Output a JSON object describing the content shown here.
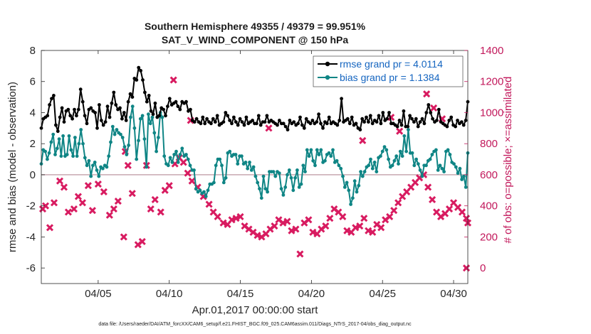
{
  "chart_data": {
    "type": "line",
    "title_line1": "Southern Hemisphere 49355 / 49379 = 99.951%",
    "title_line2": "SAT_V_WIND_COMPONENT @ 150 hPa",
    "xlabel": "Apr.01,2017 00:00:00 start",
    "ylabel_left": "rmse and bias (model - observation)",
    "ylabel_right": "# of obs: o=possible; ×=assimilated",
    "footnote": "data file: /Users/raeder/DAI/ATM_forcXX/CAM6_setup/f.e21.FHIST_BGC.f09_025.CAM6assim.011/Diags_NTrS_2017-04/obs_diag_output.nc",
    "xlim": [
      1.0,
      31.0
    ],
    "ylim_left": [
      -7,
      8
    ],
    "ylim_right": [
      -100,
      1400
    ],
    "x_ticks": [
      5,
      10,
      15,
      20,
      25,
      30
    ],
    "x_tick_labels": [
      "04/05",
      "04/10",
      "04/15",
      "04/20",
      "04/25",
      "04/30"
    ],
    "y_ticks_left": [
      -6,
      -4,
      -2,
      0,
      2,
      4,
      6,
      8
    ],
    "y_ticks_right": [
      0,
      200,
      400,
      600,
      800,
      1000,
      1200,
      1400
    ],
    "zero_line": 0,
    "colors": {
      "rmse": "#000000",
      "bias": "#0f8585",
      "obs": "#d81b60",
      "zero_line": "#c8a8b0",
      "legend_text": "#1565c0",
      "right_axis": "#c2185b"
    },
    "series": [
      {
        "name": "rmse",
        "legend": "rmse grand pr = 4.0114",
        "axis": "left",
        "marker": "circle",
        "values": [
          3.0,
          3.6,
          3.7,
          3.8,
          4.5,
          4.9,
          5.1,
          3.2,
          2.8,
          3.7,
          4.3,
          3.4,
          4.1,
          4.2,
          3.8,
          3.6,
          4.2,
          3.8,
          4.2,
          5.5,
          4.7,
          3.8,
          3.3,
          4.2,
          4.3,
          4.1,
          4.0,
          3.0,
          4.5,
          3.5,
          3.2,
          3.4,
          4.4,
          3.7,
          4.6,
          5.3,
          4.5,
          4.2,
          4.3,
          3.6,
          4.0,
          3.5,
          4.7,
          5.2,
          5.0,
          6.2,
          6.1,
          6.9,
          6.7,
          6.1,
          5.3,
          4.7,
          5.1,
          4.1,
          3.9,
          4.6,
          3.7,
          3.8,
          4.3,
          4.2,
          3.8,
          4.4,
          4.9,
          4.5,
          4.6,
          4.7,
          4.4,
          4.2,
          4.7,
          4.6,
          4.7,
          4.1,
          4.2,
          3.5,
          3.4,
          3.6,
          3.4,
          3.3,
          3.7,
          3.3,
          3.6,
          3.4,
          3.3,
          3.6,
          3.4,
          3.8,
          3.2,
          3.3,
          3.4,
          4.0,
          3.8,
          3.5,
          3.3,
          3.7,
          3.4,
          3.2,
          3.6,
          3.4,
          3.2,
          3.7,
          3.3,
          3.4,
          3.5,
          3.3,
          3.3,
          3.8,
          3.2,
          3.4,
          3.4,
          3.8,
          3.4,
          3.5,
          3.4,
          3.3,
          3.2,
          3.5,
          3.3,
          3.3,
          3.1,
          2.9,
          3.5,
          3.3,
          3.4,
          3.2,
          3.3,
          3.7,
          3.2,
          3.0,
          3.6,
          3.4,
          3.3,
          3.5,
          3.3,
          3.4,
          3.9,
          3.3,
          3.0,
          3.4,
          3.3,
          3.7,
          3.3,
          3.4,
          3.3,
          3.2,
          3.5,
          4.9,
          3.4,
          3.5,
          3.6,
          3.3,
          3.7,
          3.2,
          3.3,
          3.0,
          2.9,
          3.6,
          3.4,
          3.7,
          3.4,
          3.8,
          3.3,
          3.5,
          3.4,
          3.8,
          3.3,
          4.0,
          3.5,
          3.6,
          4.0,
          3.3,
          3.3,
          3.2,
          3.1,
          3.5,
          3.2,
          4.1,
          3.1,
          3.1,
          3.8,
          3.6,
          3.4,
          3.6,
          3.1,
          3.4,
          3.6,
          3.3,
          4.0,
          4.5,
          4.0,
          3.6,
          3.4,
          3.5,
          4.2,
          3.4,
          3.3,
          3.2,
          3.1,
          3.5,
          3.7,
          3.2,
          3.1,
          3.5,
          3.3,
          3.4,
          3.2,
          3.5,
          4.7
        ]
      },
      {
        "name": "bias",
        "legend": "bias grand pr = 1.1384",
        "axis": "left",
        "marker": "circle",
        "values": [
          0.7,
          1.6,
          1.5,
          1.0,
          1.4,
          2.1,
          2.6,
          1.3,
          1.7,
          2.3,
          1.2,
          2.5,
          1.2,
          1.3,
          2.5,
          1.6,
          1.2,
          2.4,
          1.2,
          2.0,
          2.9,
          2.0,
          1.1,
          0.6,
          0.9,
          -0.1,
          0.6,
          0.8,
          0.3,
          -0.1,
          0.5,
          0.4,
          0.6,
          0.5,
          1.2,
          2.1,
          3.1,
          2.6,
          2.9,
          2.7,
          2.6,
          2.4,
          1.8,
          1.3,
          1.9,
          3.7,
          4.4,
          3.0,
          1.0,
          2.2,
          3.6,
          3.8,
          2.3,
          0.5,
          3.9,
          3.3,
          3.7,
          2.7,
          1.5,
          2.4,
          4.0,
          3.7,
          1.2,
          0.7,
          0.6,
          1.1,
          0.8,
          1.3,
          1.5,
          0.8,
          1.3,
          1.7,
          1.2,
          1.3,
          1.0,
          0.6,
          0.3,
          0.3,
          -0.9,
          -1.1,
          -1.0,
          -1.2,
          -1.1,
          -1.4,
          -1.0,
          -0.6,
          -0.6,
          -0.5,
          0.6,
          1.0,
          1.0,
          0.6,
          -0.5,
          -0.2,
          1.4,
          1.5,
          1.2,
          1.3,
          1.3,
          0.7,
          1.2,
          1.2,
          0.7,
          0.8,
          0.4,
          0.8,
          0.3,
          0.5,
          -0.1,
          -0.5,
          -0.9,
          -1.5,
          -0.1,
          -0.9,
          -1.1,
          0.2,
          0.2,
          0.2,
          -0.1,
          0.2,
          0.1,
          -0.9,
          -1.3,
          -0.8,
          0.0,
          0.3,
          -0.2,
          -1.0,
          -0.2,
          0.3,
          -0.8,
          -0.6,
          0.6,
          0.2,
          1.6,
          1.2,
          1.6,
          0.9,
          0.6,
          1.6,
          1.3,
          1.6,
          0.8,
          0.9,
          1.3,
          1.4,
          1.2,
          1.6,
          0.8,
          0.9,
          0.6,
          0.4,
          -0.1,
          -0.8,
          -0.5,
          -1.0,
          -1.9,
          -1.5,
          -0.4,
          -1.1,
          -0.7,
          0.2,
          -0.1,
          0.2,
          0.5,
          0.6,
          1.0,
          0.4,
          0.8,
          0.2,
          1.1,
          1.2,
          1.5,
          1.8,
          1.6,
          1.0,
          0.5,
          0.6,
          0.9,
          1.2,
          0.7,
          1.5,
          1.2,
          2.5,
          1.5,
          2.9,
          1.4,
          1.4,
          0.6,
          1.0,
          0.7,
          0.3,
          -0.1,
          0.6,
          0.6,
          0.9,
          1.0,
          1.3,
          1.5,
          1.6,
          0.3,
          0.6,
          0.4,
          0.2,
          1.5,
          1.6,
          1.3,
          0.8,
          0.7,
          0.5,
          0.1,
          0.4,
          -0.3,
          -0.1,
          -0.8,
          1.4
        ]
      },
      {
        "name": "obs_assimilated",
        "axis": "right",
        "marker": "x",
        "points": [
          [
            1.1,
            380
          ],
          [
            1.3,
            400
          ],
          [
            1.6,
            260
          ],
          [
            1.9,
            420
          ],
          [
            2.3,
            560
          ],
          [
            2.6,
            520
          ],
          [
            2.9,
            360
          ],
          [
            3.3,
            380
          ],
          [
            3.6,
            460
          ],
          [
            3.9,
            420
          ],
          [
            4.3,
            530
          ],
          [
            4.6,
            370
          ],
          [
            5.0,
            540
          ],
          [
            5.4,
            490
          ],
          [
            5.8,
            340
          ],
          [
            6.1,
            380
          ],
          [
            6.4,
            430
          ],
          [
            6.8,
            200
          ],
          [
            7.1,
            660
          ],
          [
            7.4,
            480
          ],
          [
            7.8,
            150
          ],
          [
            8.1,
            170
          ],
          [
            8.4,
            660
          ],
          [
            8.7,
            380
          ],
          [
            9.0,
            440
          ],
          [
            9.4,
            360
          ],
          [
            9.7,
            500
          ],
          [
            10.0,
            530
          ],
          [
            10.4,
            670
          ],
          [
            10.7,
            710
          ],
          [
            11.0,
            680
          ],
          [
            11.3,
            610
          ],
          [
            11.6,
            560
          ],
          [
            12.0,
            520
          ],
          [
            12.4,
            460
          ],
          [
            12.8,
            410
          ],
          [
            13.1,
            360
          ],
          [
            13.4,
            330
          ],
          [
            13.8,
            290
          ],
          [
            14.1,
            280
          ],
          [
            14.4,
            310
          ],
          [
            14.7,
            320
          ],
          [
            15.0,
            330
          ],
          [
            15.3,
            270
          ],
          [
            15.6,
            250
          ],
          [
            15.9,
            230
          ],
          [
            16.2,
            210
          ],
          [
            16.5,
            200
          ],
          [
            16.8,
            220
          ],
          [
            17.1,
            250
          ],
          [
            17.4,
            270
          ],
          [
            17.7,
            310
          ],
          [
            18.0,
            290
          ],
          [
            18.3,
            300
          ],
          [
            18.6,
            240
          ],
          [
            18.9,
            250
          ],
          [
            19.2,
            90
          ],
          [
            19.5,
            290
          ],
          [
            19.8,
            310
          ],
          [
            20.1,
            230
          ],
          [
            20.4,
            220
          ],
          [
            20.7,
            250
          ],
          [
            21.0,
            270
          ],
          [
            21.3,
            320
          ],
          [
            21.6,
            380
          ],
          [
            21.9,
            360
          ],
          [
            22.2,
            330
          ],
          [
            22.5,
            240
          ],
          [
            22.8,
            230
          ],
          [
            23.1,
            260
          ],
          [
            23.4,
            270
          ],
          [
            23.7,
            320
          ],
          [
            24.0,
            240
          ],
          [
            24.3,
            230
          ],
          [
            24.6,
            280
          ],
          [
            24.9,
            260
          ],
          [
            25.2,
            310
          ],
          [
            25.5,
            330
          ],
          [
            25.8,
            370
          ],
          [
            26.1,
            420
          ],
          [
            26.4,
            460
          ],
          [
            26.7,
            490
          ],
          [
            27.0,
            520
          ],
          [
            27.3,
            550
          ],
          [
            27.6,
            580
          ],
          [
            27.9,
            600
          ],
          [
            28.2,
            520
          ],
          [
            28.5,
            440
          ],
          [
            28.8,
            360
          ],
          [
            29.1,
            330
          ],
          [
            29.4,
            350
          ],
          [
            29.7,
            380
          ],
          [
            30.0,
            420
          ],
          [
            30.3,
            390
          ],
          [
            30.6,
            360
          ],
          [
            30.9,
            320
          ],
          [
            31.0,
            290
          ]
        ]
      },
      {
        "name": "obs_possible",
        "axis": "right",
        "marker": "x",
        "points": [
          [
            6.9,
            750
          ],
          [
            10.3,
            1210
          ],
          [
            11.5,
            950
          ],
          [
            17.0,
            900
          ],
          [
            23.6,
            820
          ],
          [
            25.6,
            970
          ],
          [
            26.2,
            880
          ],
          [
            28.1,
            1120
          ],
          [
            28.6,
            1030
          ],
          [
            29.2,
            960
          ],
          [
            30.9,
            0
          ]
        ]
      }
    ]
  }
}
